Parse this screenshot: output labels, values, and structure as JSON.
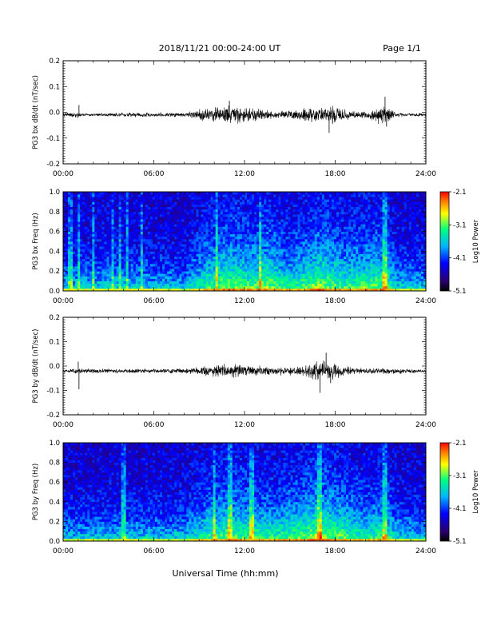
{
  "header": {
    "title": "2018/11/21  00:00-24:00 UT",
    "page": "Page 1/1"
  },
  "footer": {
    "xlabel": "Universal Time (hh:mm)"
  },
  "colors": {
    "trace": "#000000",
    "colormap": [
      "#000000",
      "#2a0070",
      "#0000ff",
      "#00b4ff",
      "#00ff80",
      "#ffff00",
      "#ff7f00",
      "#ff0000"
    ]
  },
  "chart_data": [
    {
      "type": "line",
      "ylabel": "PG3 bx dB/dt (nT/sec)",
      "xlim": [
        0,
        24
      ],
      "ylim": [
        -0.2,
        0.2
      ],
      "xticks": [
        "00:00",
        "06:00",
        "12:00",
        "18:00",
        "24:00"
      ],
      "yticks": [
        "-0.2",
        "-0.1",
        "0.0",
        "0.1",
        "0.2"
      ],
      "baseline": -0.01,
      "envelope": [
        {
          "x": 0,
          "amp": 0.006
        },
        {
          "x": 1,
          "amp": 0.012
        },
        {
          "x": 1.2,
          "amp": 0.006
        },
        {
          "x": 4.5,
          "amp": 0.008
        },
        {
          "x": 8,
          "amp": 0.008
        },
        {
          "x": 9.5,
          "amp": 0.025
        },
        {
          "x": 11,
          "amp": 0.035
        },
        {
          "x": 12.5,
          "amp": 0.028
        },
        {
          "x": 14,
          "amp": 0.012
        },
        {
          "x": 15.5,
          "amp": 0.02
        },
        {
          "x": 17,
          "amp": 0.03
        },
        {
          "x": 17.7,
          "amp": 0.045
        },
        {
          "x": 18.5,
          "amp": 0.02
        },
        {
          "x": 20,
          "amp": 0.012
        },
        {
          "x": 21.3,
          "amp": 0.04
        },
        {
          "x": 22,
          "amp": 0.008
        },
        {
          "x": 24,
          "amp": 0.006
        }
      ],
      "spikes": [
        {
          "x": 1.05,
          "y": 0.028
        },
        {
          "x": 17.6,
          "y": -0.08
        },
        {
          "x": 21.3,
          "y": 0.06
        },
        {
          "x": 21.4,
          "y": -0.055
        },
        {
          "x": 11.0,
          "y": 0.045
        }
      ]
    },
    {
      "type": "heatmap",
      "ylabel": "PG3 bx Freq (Hz)",
      "xlim": [
        0,
        24
      ],
      "ylim": [
        0,
        1.0
      ],
      "xticks": [
        "00:00",
        "06:00",
        "12:00",
        "18:00",
        "24:00"
      ],
      "yticks": [
        "0.0",
        "0.2",
        "0.4",
        "0.6",
        "0.8",
        "1.0"
      ],
      "colorbar": {
        "label": "Log10 Power",
        "range": [
          -5.1,
          -2.1
        ],
        "ticks": [
          "-2.1",
          "-3.1",
          "-4.1",
          "-5.1"
        ]
      },
      "activity": [
        {
          "x": 0,
          "v": 0.25
        },
        {
          "x": 4,
          "v": 0.3
        },
        {
          "x": 8,
          "v": 0.2
        },
        {
          "x": 9.5,
          "v": 0.55
        },
        {
          "x": 11,
          "v": 0.7
        },
        {
          "x": 12.5,
          "v": 0.6
        },
        {
          "x": 13.5,
          "v": 0.7
        },
        {
          "x": 15,
          "v": 0.45
        },
        {
          "x": 17,
          "v": 0.75
        },
        {
          "x": 18.5,
          "v": 0.55
        },
        {
          "x": 21.3,
          "v": 0.65
        },
        {
          "x": 22,
          "v": 0.3
        },
        {
          "x": 24,
          "v": 0.25
        }
      ],
      "bright_columns": [
        0.5,
        1.0,
        2.0,
        3.3,
        3.8,
        4.2,
        5.2,
        10.2,
        13.0,
        21.3
      ]
    },
    {
      "type": "line",
      "ylabel": "PG3 by dB/dt (nT/sec)",
      "xlim": [
        0,
        24
      ],
      "ylim": [
        -0.2,
        0.2
      ],
      "xticks": [
        "00:00",
        "06:00",
        "12:00",
        "18:00",
        "24:00"
      ],
      "yticks": [
        "-0.2",
        "-0.1",
        "0.0",
        "0.1",
        "0.2"
      ],
      "baseline": -0.02,
      "envelope": [
        {
          "x": 0,
          "amp": 0.006
        },
        {
          "x": 1,
          "amp": 0.01
        },
        {
          "x": 4,
          "amp": 0.008
        },
        {
          "x": 8,
          "amp": 0.01
        },
        {
          "x": 9.5,
          "amp": 0.02
        },
        {
          "x": 11,
          "amp": 0.03
        },
        {
          "x": 12.5,
          "amp": 0.025
        },
        {
          "x": 14,
          "amp": 0.015
        },
        {
          "x": 16,
          "amp": 0.02
        },
        {
          "x": 17,
          "amp": 0.045
        },
        {
          "x": 18,
          "amp": 0.03
        },
        {
          "x": 19.5,
          "amp": 0.012
        },
        {
          "x": 21.3,
          "amp": 0.012
        },
        {
          "x": 24,
          "amp": 0.006
        }
      ],
      "spikes": [
        {
          "x": 1.0,
          "y": 0.018
        },
        {
          "x": 1.05,
          "y": -0.095
        },
        {
          "x": 17.0,
          "y": -0.11
        },
        {
          "x": 17.4,
          "y": 0.055
        },
        {
          "x": 17.7,
          "y": -0.07
        }
      ]
    },
    {
      "type": "heatmap",
      "ylabel": "PG3 by Freq (Hz)",
      "xlim": [
        0,
        24
      ],
      "ylim": [
        0,
        1.0
      ],
      "xticks": [
        "00:00",
        "06:00",
        "12:00",
        "18:00",
        "24:00"
      ],
      "yticks": [
        "0.0",
        "0.2",
        "0.4",
        "0.6",
        "0.8",
        "1.0"
      ],
      "colorbar": {
        "label": "Log10 Power",
        "range": [
          -5.1,
          -2.1
        ],
        "ticks": [
          "-2.1",
          "-3.1",
          "-4.1",
          "-5.1"
        ]
      },
      "activity": [
        {
          "x": 0,
          "v": 0.2
        },
        {
          "x": 4,
          "v": 0.25
        },
        {
          "x": 8,
          "v": 0.25
        },
        {
          "x": 9.5,
          "v": 0.5
        },
        {
          "x": 11,
          "v": 0.65
        },
        {
          "x": 12.5,
          "v": 0.55
        },
        {
          "x": 14,
          "v": 0.5
        },
        {
          "x": 15.5,
          "v": 0.6
        },
        {
          "x": 17,
          "v": 0.75
        },
        {
          "x": 18.5,
          "v": 0.6
        },
        {
          "x": 20,
          "v": 0.45
        },
        {
          "x": 21.3,
          "v": 0.55
        },
        {
          "x": 22,
          "v": 0.3
        },
        {
          "x": 24,
          "v": 0.2
        }
      ],
      "bright_columns": [
        4.0,
        10.0,
        11.0,
        12.5,
        17.0,
        21.3
      ]
    }
  ]
}
